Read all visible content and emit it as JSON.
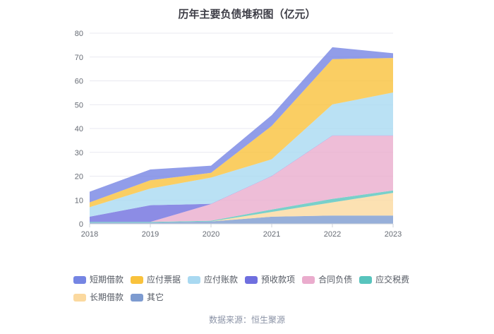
{
  "title": "历年主要负债堆积图（亿元）",
  "source": "数据来源：恒生聚源",
  "chart_data": {
    "type": "area",
    "stacked": true,
    "title": "历年主要负债堆积图（亿元）",
    "x": [
      "2018",
      "2019",
      "2020",
      "2021",
      "2022",
      "2023"
    ],
    "xlabel": "",
    "ylabel": "",
    "ylim": [
      0,
      80
    ],
    "ytick_step": 10,
    "grid": true,
    "legend_position": "bottom",
    "stack_order_bottom_to_top": [
      "其它",
      "长期借款",
      "应交税费",
      "合同负债",
      "预收款项",
      "应付账款",
      "应付票据",
      "短期借款"
    ],
    "series": [
      {
        "name": "短期借款",
        "color": "#7585e3",
        "values": [
          4.5,
          4.5,
          3.0,
          4.5,
          5.0,
          2.0
        ]
      },
      {
        "name": "应付票据",
        "color": "#f9c23c",
        "values": [
          2.0,
          3.5,
          2.0,
          14.0,
          19.0,
          14.5
        ]
      },
      {
        "name": "应付账款",
        "color": "#a9d9f1",
        "values": [
          4.0,
          7.0,
          11.0,
          7.0,
          13.0,
          18.0
        ]
      },
      {
        "name": "预收款项",
        "color": "#6f6fdf",
        "values": [
          2.2,
          7.0,
          0.1,
          0.1,
          0.1,
          0.1
        ]
      },
      {
        "name": "合同负债",
        "color": "#eaaccd",
        "values": [
          0.0,
          0.0,
          7.0,
          14.0,
          26.5,
          23.0
        ]
      },
      {
        "name": "应交税费",
        "color": "#58c4bd",
        "values": [
          0.3,
          0.3,
          0.3,
          1.0,
          1.5,
          1.0
        ]
      },
      {
        "name": "长期借款",
        "color": "#fbd99f",
        "values": [
          0.0,
          0.0,
          0.0,
          2.0,
          5.5,
          9.5
        ]
      },
      {
        "name": "其它",
        "color": "#7d9bd0",
        "values": [
          0.5,
          0.5,
          1.0,
          3.0,
          3.5,
          3.5
        ]
      }
    ],
    "colors": {
      "axis_label": "#666b74",
      "gridline": "#e9e9f0",
      "axis_line": "#ccd0d9"
    }
  }
}
